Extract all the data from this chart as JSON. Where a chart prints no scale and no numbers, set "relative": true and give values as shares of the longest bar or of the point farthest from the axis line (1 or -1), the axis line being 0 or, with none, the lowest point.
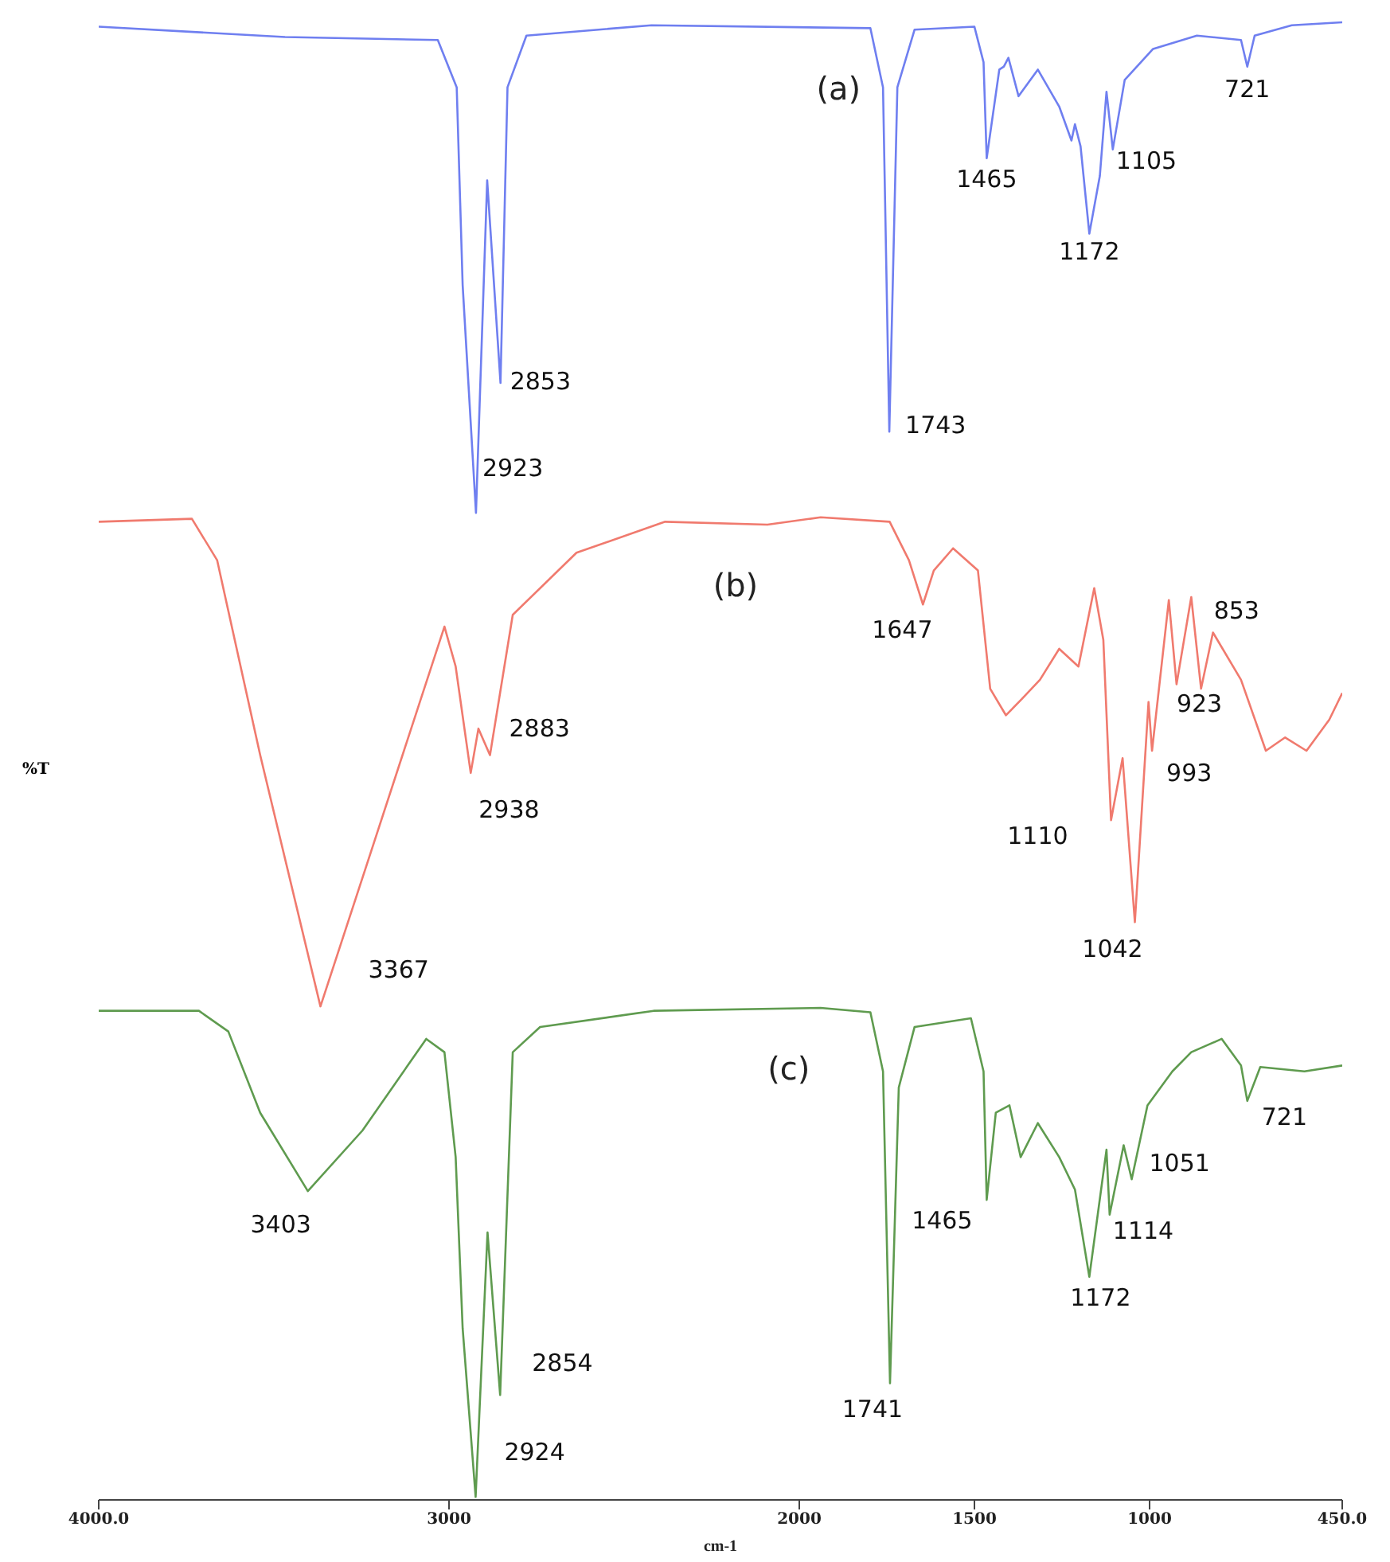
{
  "chart_data": {
    "type": "line",
    "relative": true,
    "xlabel": "cm-1",
    "ylabel": "%T",
    "xlim": [
      4000,
      450
    ],
    "xticks": [
      {
        "value": 4000,
        "label": "4000.0"
      },
      3000,
      2000,
      1500,
      1000,
      {
        "value": 450,
        "label": "450.0"
      }
    ],
    "series": [
      {
        "name": "(a)",
        "color": "#6f7ff0",
        "x": [
          4000,
          3468,
          3032,
          2978,
          2961,
          2923,
          2891,
          2853,
          2833,
          2779,
          2422,
          1797,
          1761,
          1743,
          1720,
          1671,
          1500,
          1474,
          1465,
          1429,
          1416,
          1403,
          1374,
          1319,
          1258,
          1223,
          1213,
          1197,
          1172,
          1142,
          1123,
          1105,
          1071,
          990,
          865,
          739,
          721,
          700,
          594,
          450
        ],
        "values": [
          0.997,
          0.99,
          0.988,
          0.956,
          0.822,
          0.668,
          0.893,
          0.756,
          0.956,
          0.991,
          0.998,
          0.996,
          0.956,
          0.723,
          0.956,
          0.995,
          0.997,
          0.973,
          0.908,
          0.968,
          0.97,
          0.976,
          0.95,
          0.968,
          0.943,
          0.92,
          0.931,
          0.916,
          0.857,
          0.896,
          0.953,
          0.914,
          0.961,
          0.982,
          0.991,
          0.988,
          0.97,
          0.991,
          0.998,
          1.0
        ]
      },
      {
        "name": "(b)",
        "color": "#f07a6e",
        "x": [
          4000,
          3734,
          3662,
          3539,
          3367,
          3214,
          3013,
          2981,
          2938,
          2916,
          2883,
          2818,
          2636,
          2383,
          2091,
          1939,
          1742,
          1687,
          1647,
          1616,
          1561,
          1490,
          1455,
          1410,
          1365,
          1313,
          1258,
          1203,
          1158,
          1132,
          1110,
          1077,
          1042,
          1003,
          993,
          945,
          923,
          881,
          853,
          819,
          739,
          668,
          613,
          552,
          487,
          450
        ],
        "values": [
          0.662,
          0.664,
          0.636,
          0.504,
          0.334,
          0.445,
          0.591,
          0.564,
          0.492,
          0.522,
          0.504,
          0.599,
          0.641,
          0.662,
          0.66,
          0.665,
          0.662,
          0.636,
          0.606,
          0.629,
          0.644,
          0.629,
          0.549,
          0.531,
          0.542,
          0.555,
          0.576,
          0.564,
          0.617,
          0.582,
          0.46,
          0.502,
          0.391,
          0.54,
          0.507,
          0.609,
          0.552,
          0.611,
          0.549,
          0.587,
          0.555,
          0.507,
          0.516,
          0.507,
          0.528,
          0.546
        ]
      },
      {
        "name": "(c)",
        "color": "#5f9b4f",
        "x": [
          4000,
          3714,
          3630,
          3539,
          3403,
          3247,
          3065,
          3013,
          2981,
          2961,
          2924,
          2890,
          2854,
          2818,
          2740,
          2416,
          1939,
          1797,
          1761,
          1741,
          1716,
          1671,
          1510,
          1474,
          1465,
          1439,
          1400,
          1368,
          1319,
          1258,
          1213,
          1172,
          1123,
          1114,
          1074,
          1051,
          1006,
          935,
          881,
          794,
          739,
          721,
          684,
          558,
          450
        ],
        "values": [
          0.331,
          0.331,
          0.317,
          0.262,
          0.209,
          0.25,
          0.312,
          0.303,
          0.232,
          0.116,
          0.002,
          0.181,
          0.071,
          0.303,
          0.32,
          0.331,
          0.333,
          0.33,
          0.29,
          0.079,
          0.279,
          0.32,
          0.326,
          0.29,
          0.203,
          0.262,
          0.267,
          0.232,
          0.255,
          0.232,
          0.21,
          0.151,
          0.237,
          0.193,
          0.24,
          0.217,
          0.267,
          0.29,
          0.303,
          0.312,
          0.294,
          0.27,
          0.293,
          0.29,
          0.294
        ]
      }
    ],
    "annotations": [
      {
        "text": "2923",
        "x": 2923,
        "y": 0.668
      },
      {
        "text": "2853",
        "x": 2853,
        "y": 0.756
      },
      {
        "text": "1743",
        "x": 1743,
        "y": 0.723
      },
      {
        "text": "1465",
        "x": 1465,
        "y": 0.908
      },
      {
        "text": "1172",
        "x": 1172,
        "y": 0.857
      },
      {
        "text": "1105",
        "x": 1105,
        "y": 0.914
      },
      {
        "text": "721",
        "x": 721,
        "y": 0.97
      },
      {
        "text": "3367",
        "x": 3367,
        "y": 0.334
      },
      {
        "text": "2938",
        "x": 2938,
        "y": 0.492
      },
      {
        "text": "2883",
        "x": 2883,
        "y": 0.504
      },
      {
        "text": "1647",
        "x": 1647,
        "y": 0.606
      },
      {
        "text": "1110",
        "x": 1110,
        "y": 0.46
      },
      {
        "text": "1042",
        "x": 1042,
        "y": 0.391
      },
      {
        "text": "993",
        "x": 993,
        "y": 0.507
      },
      {
        "text": "923",
        "x": 923,
        "y": 0.552
      },
      {
        "text": "853",
        "x": 853,
        "y": 0.549
      },
      {
        "text": "3403",
        "x": 3403,
        "y": 0.209
      },
      {
        "text": "2924",
        "x": 2924,
        "y": 0.002
      },
      {
        "text": "2854",
        "x": 2854,
        "y": 0.071
      },
      {
        "text": "1741",
        "x": 1741,
        "y": 0.079
      },
      {
        "text": "1465",
        "x": 1465,
        "y": 0.203
      },
      {
        "text": "1172",
        "x": 1172,
        "y": 0.151
      },
      {
        "text": "1114",
        "x": 1114,
        "y": 0.193
      },
      {
        "text": "1051",
        "x": 1051,
        "y": 0.217
      },
      {
        "text": "721",
        "x": 721,
        "y": 0.27
      }
    ]
  }
}
